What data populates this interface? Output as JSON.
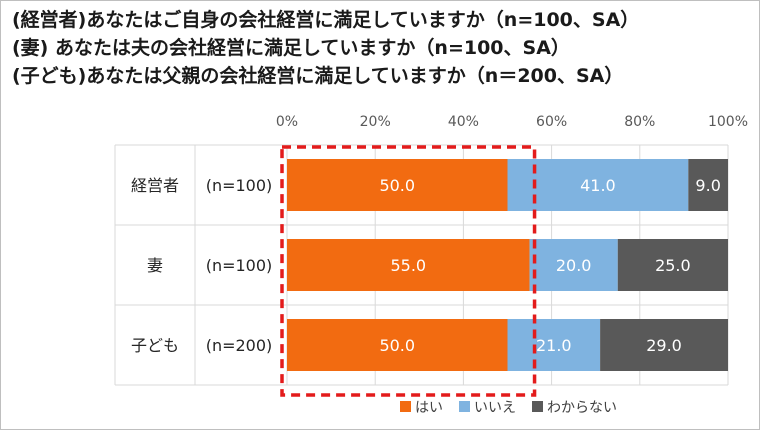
{
  "titles": [
    "(経営者)あなたはご自身の会社経営に満足していますか（n=100、SA）",
    "(妻) あなたは夫の会社経営に満足していますか（n=100、SA）",
    "(子ども)あなたは父親の会社経営に満足していますか（n＝200、SA）"
  ],
  "chart_data": {
    "type": "bar",
    "orientation": "horizontal",
    "stacked": true,
    "categories": [
      "経営者",
      "妻",
      "子ども"
    ],
    "sample_sizes": [
      "(n=100)",
      "(n=100)",
      "(n=200)"
    ],
    "series": [
      {
        "name": "はい",
        "values": [
          50.0,
          55.0,
          50.0
        ],
        "color": "#f26b11",
        "label_color": "#ffffff"
      },
      {
        "name": "いいえ",
        "values": [
          41.0,
          20.0,
          21.0
        ],
        "color": "#7fb3e0",
        "label_color": "#ffffff"
      },
      {
        "name": "わからない",
        "values": [
          9.0,
          25.0,
          29.0
        ],
        "color": "#595959",
        "label_color": "#ffffff"
      }
    ],
    "xlim": [
      0,
      100
    ],
    "xticks": [
      "0%",
      "20%",
      "40%",
      "60%",
      "80%",
      "100%"
    ],
    "legend_position": "bottom",
    "highlight": "はい"
  }
}
